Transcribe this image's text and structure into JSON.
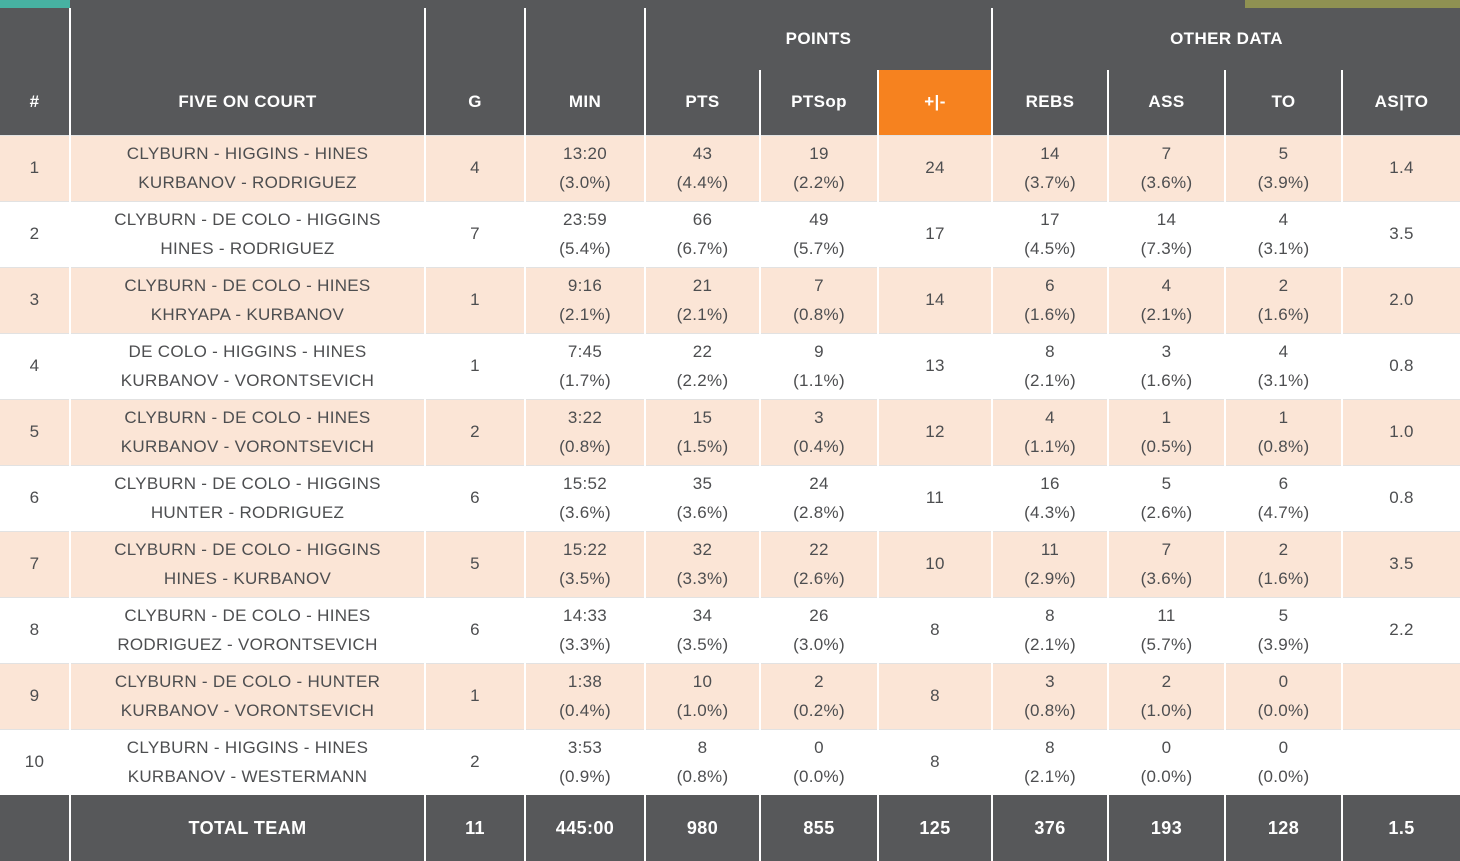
{
  "colors": {
    "header_bg": "#57585A",
    "accent_orange": "#F6821F",
    "row_alt_bg": "#FBE5D6",
    "row_bg": "#FFFFFF",
    "body_text": "#4D4E50",
    "total_bg": "#57585A",
    "teal_strip": "#47B2A2",
    "olive_strip": "#8F9152"
  },
  "chart_data": {
    "type": "table",
    "column_groups": [
      {
        "label": "POINTS",
        "columns": [
          "PTS",
          "PTSop",
          "+|-"
        ]
      },
      {
        "label": "OTHER DATA",
        "columns": [
          "REBS",
          "ASS",
          "TO",
          "AS|TO"
        ]
      }
    ],
    "columns": [
      "#",
      "FIVE ON COURT",
      "G",
      "MIN",
      "PTS",
      "PTSop",
      "+|-",
      "REBS",
      "ASS",
      "TO",
      "AS|TO"
    ],
    "rows": [
      {
        "num": "1",
        "lineup": [
          "CLYBURN - HIGGINS - HINES",
          "KURBANOV - RODRIGUEZ"
        ],
        "g": "4",
        "min": [
          "13:20",
          "(3.0%)"
        ],
        "pts": [
          "43",
          "(4.4%)"
        ],
        "ptsop": [
          "19",
          "(2.2%)"
        ],
        "plusminus": "24",
        "rebs": [
          "14",
          "(3.7%)"
        ],
        "ass": [
          "7",
          "(3.6%)"
        ],
        "to": [
          "5",
          "(3.9%)"
        ],
        "asto": "1.4"
      },
      {
        "num": "2",
        "lineup": [
          "CLYBURN - DE COLO - HIGGINS",
          "HINES - RODRIGUEZ"
        ],
        "g": "7",
        "min": [
          "23:59",
          "(5.4%)"
        ],
        "pts": [
          "66",
          "(6.7%)"
        ],
        "ptsop": [
          "49",
          "(5.7%)"
        ],
        "plusminus": "17",
        "rebs": [
          "17",
          "(4.5%)"
        ],
        "ass": [
          "14",
          "(7.3%)"
        ],
        "to": [
          "4",
          "(3.1%)"
        ],
        "asto": "3.5"
      },
      {
        "num": "3",
        "lineup": [
          "CLYBURN - DE COLO - HINES",
          "KHRYAPA - KURBANOV"
        ],
        "g": "1",
        "min": [
          "9:16",
          "(2.1%)"
        ],
        "pts": [
          "21",
          "(2.1%)"
        ],
        "ptsop": [
          "7",
          "(0.8%)"
        ],
        "plusminus": "14",
        "rebs": [
          "6",
          "(1.6%)"
        ],
        "ass": [
          "4",
          "(2.1%)"
        ],
        "to": [
          "2",
          "(1.6%)"
        ],
        "asto": "2.0"
      },
      {
        "num": "4",
        "lineup": [
          "DE COLO - HIGGINS - HINES",
          "KURBANOV - VORONTSEVICH"
        ],
        "g": "1",
        "min": [
          "7:45",
          "(1.7%)"
        ],
        "pts": [
          "22",
          "(2.2%)"
        ],
        "ptsop": [
          "9",
          "(1.1%)"
        ],
        "plusminus": "13",
        "rebs": [
          "8",
          "(2.1%)"
        ],
        "ass": [
          "3",
          "(1.6%)"
        ],
        "to": [
          "4",
          "(3.1%)"
        ],
        "asto": "0.8"
      },
      {
        "num": "5",
        "lineup": [
          "CLYBURN - DE COLO - HINES",
          "KURBANOV - VORONTSEVICH"
        ],
        "g": "2",
        "min": [
          "3:22",
          "(0.8%)"
        ],
        "pts": [
          "15",
          "(1.5%)"
        ],
        "ptsop": [
          "3",
          "(0.4%)"
        ],
        "plusminus": "12",
        "rebs": [
          "4",
          "(1.1%)"
        ],
        "ass": [
          "1",
          "(0.5%)"
        ],
        "to": [
          "1",
          "(0.8%)"
        ],
        "asto": "1.0"
      },
      {
        "num": "6",
        "lineup": [
          "CLYBURN - DE COLO - HIGGINS",
          "HUNTER - RODRIGUEZ"
        ],
        "g": "6",
        "min": [
          "15:52",
          "(3.6%)"
        ],
        "pts": [
          "35",
          "(3.6%)"
        ],
        "ptsop": [
          "24",
          "(2.8%)"
        ],
        "plusminus": "11",
        "rebs": [
          "16",
          "(4.3%)"
        ],
        "ass": [
          "5",
          "(2.6%)"
        ],
        "to": [
          "6",
          "(4.7%)"
        ],
        "asto": "0.8"
      },
      {
        "num": "7",
        "lineup": [
          "CLYBURN - DE COLO - HIGGINS",
          "HINES - KURBANOV"
        ],
        "g": "5",
        "min": [
          "15:22",
          "(3.5%)"
        ],
        "pts": [
          "32",
          "(3.3%)"
        ],
        "ptsop": [
          "22",
          "(2.6%)"
        ],
        "plusminus": "10",
        "rebs": [
          "11",
          "(2.9%)"
        ],
        "ass": [
          "7",
          "(3.6%)"
        ],
        "to": [
          "2",
          "(1.6%)"
        ],
        "asto": "3.5"
      },
      {
        "num": "8",
        "lineup": [
          "CLYBURN - DE COLO - HINES",
          "RODRIGUEZ - VORONTSEVICH"
        ],
        "g": "6",
        "min": [
          "14:33",
          "(3.3%)"
        ],
        "pts": [
          "34",
          "(3.5%)"
        ],
        "ptsop": [
          "26",
          "(3.0%)"
        ],
        "plusminus": "8",
        "rebs": [
          "8",
          "(2.1%)"
        ],
        "ass": [
          "11",
          "(5.7%)"
        ],
        "to": [
          "5",
          "(3.9%)"
        ],
        "asto": "2.2"
      },
      {
        "num": "9",
        "lineup": [
          "CLYBURN - DE COLO - HUNTER",
          "KURBANOV - VORONTSEVICH"
        ],
        "g": "1",
        "min": [
          "1:38",
          "(0.4%)"
        ],
        "pts": [
          "10",
          "(1.0%)"
        ],
        "ptsop": [
          "2",
          "(0.2%)"
        ],
        "plusminus": "8",
        "rebs": [
          "3",
          "(0.8%)"
        ],
        "ass": [
          "2",
          "(1.0%)"
        ],
        "to": [
          "0",
          "(0.0%)"
        ],
        "asto": ""
      },
      {
        "num": "10",
        "lineup": [
          "CLYBURN - HIGGINS - HINES",
          "KURBANOV - WESTERMANN"
        ],
        "g": "2",
        "min": [
          "3:53",
          "(0.9%)"
        ],
        "pts": [
          "8",
          "(0.8%)"
        ],
        "ptsop": [
          "0",
          "(0.0%)"
        ],
        "plusminus": "8",
        "rebs": [
          "8",
          "(2.1%)"
        ],
        "ass": [
          "0",
          "(0.0%)"
        ],
        "to": [
          "0",
          "(0.0%)"
        ],
        "asto": ""
      }
    ],
    "total": {
      "label": "TOTAL TEAM",
      "g": "11",
      "min": "445:00",
      "pts": "980",
      "ptsop": "855",
      "plusminus": "125",
      "rebs": "376",
      "ass": "193",
      "to": "128",
      "asto": "1.5"
    }
  }
}
